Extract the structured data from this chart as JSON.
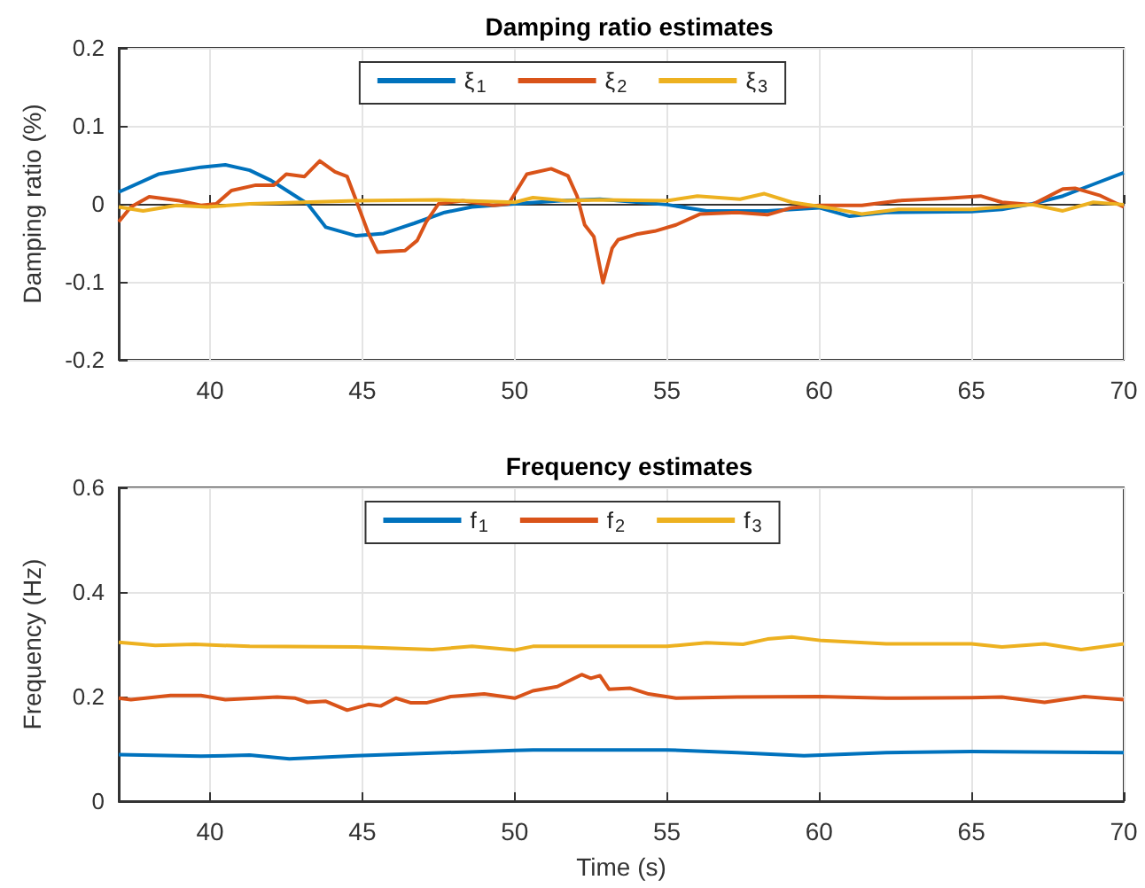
{
  "chart_data": [
    {
      "type": "line",
      "title": "Damping ratio estimates",
      "ylabel": "Damping ratio (%)",
      "xlim": [
        37,
        70
      ],
      "xticks": [
        40,
        45,
        50,
        55,
        60,
        65,
        70
      ],
      "ylim": [
        -0.2,
        0.2
      ],
      "yticks": [
        -0.2,
        -0.1,
        0,
        0.1,
        0.2
      ],
      "grid": true,
      "legend": "top",
      "line_style": "solid",
      "marker": "none",
      "series": [
        {
          "name": "ξ$_{1}$",
          "color": "#0072bd",
          "x": [
            37,
            38.3,
            39.7,
            40.5,
            41.3,
            42,
            42.6,
            43.2,
            43.8,
            44.8,
            45.7,
            46.7,
            47.7,
            48.6,
            50,
            51.5,
            52.8,
            55,
            56.3,
            58.3,
            60,
            61,
            62.2,
            65,
            66,
            67,
            68,
            69,
            70
          ],
          "values": [
            0.015,
            0.038,
            0.047,
            0.05,
            0.043,
            0.03,
            0.015,
            0,
            -0.03,
            -0.041,
            -0.038,
            -0.025,
            -0.011,
            -0.004,
            0,
            0.004,
            0.006,
            -0.001,
            -0.009,
            -0.009,
            -0.005,
            -0.016,
            -0.011,
            -0.01,
            -0.007,
            0,
            0.01,
            0.025,
            0.04
          ]
        },
        {
          "name": "ξ$_{2}$",
          "color": "#d95319",
          "x": [
            37,
            37.4,
            38,
            39,
            39.7,
            40.2,
            40.7,
            41.5,
            42.1,
            42.5,
            43.1,
            43.6,
            44.1,
            44.5,
            44.8,
            45.2,
            45.5,
            46.4,
            46.8,
            47.1,
            47.5,
            48.3,
            49.3,
            49.8,
            50.4,
            51.2,
            51.75,
            52.05,
            52.3,
            52.6,
            52.9,
            53.2,
            53.4,
            54,
            54.6,
            55.3,
            56.1,
            57.3,
            58.3,
            59.1,
            60,
            61.4,
            62.6,
            64.2,
            65.3,
            66,
            67,
            68,
            68.4,
            69.2,
            70
          ],
          "values": [
            -0.023,
            -0.004,
            0.009,
            0.004,
            -0.002,
            0,
            0.017,
            0.024,
            0.024,
            0.038,
            0.035,
            0.055,
            0.041,
            0.035,
            0.004,
            -0.038,
            -0.062,
            -0.06,
            -0.047,
            -0.023,
            0,
            0.004,
            -0.002,
            0,
            0.038,
            0.045,
            0.036,
            0.01,
            -0.027,
            -0.042,
            -0.101,
            -0.057,
            -0.046,
            -0.039,
            -0.035,
            -0.027,
            -0.013,
            -0.011,
            -0.014,
            -0.005,
            -0.002,
            -0.002,
            0.004,
            0.007,
            0.01,
            0.002,
            -0.001,
            0.019,
            0.02,
            0.011,
            -0.004
          ]
        },
        {
          "name": "ξ$_{3}$",
          "color": "#edb120",
          "x": [
            37,
            37.8,
            38.9,
            39.9,
            41.3,
            44.8,
            47.5,
            50,
            50.6,
            51.7,
            52.8,
            55,
            56,
            57.4,
            58.2,
            59.1,
            60.3,
            61.4,
            62.6,
            65,
            67,
            68,
            69,
            70
          ],
          "values": [
            -0.004,
            -0.009,
            -0.002,
            -0.004,
            0,
            0.004,
            0.005,
            0.002,
            0.008,
            0.004,
            0.005,
            0.004,
            0.01,
            0.006,
            0.013,
            0.002,
            -0.005,
            -0.013,
            -0.007,
            -0.007,
            -0.001,
            -0.009,
            0.002,
            -0.001
          ]
        }
      ]
    },
    {
      "type": "line",
      "title": "Frequency estimates",
      "xlabel": "Time (s)",
      "ylabel": "Frequency (Hz)",
      "xlim": [
        37,
        70
      ],
      "xticks": [
        40,
        45,
        50,
        55,
        60,
        65,
        70
      ],
      "ylim": [
        0,
        0.6
      ],
      "yticks": [
        0,
        0.2,
        0.4,
        0.6
      ],
      "grid": true,
      "legend": "top",
      "line_style": "solid",
      "marker": "none",
      "series": [
        {
          "name": "f$_{1}$",
          "color": "#0072bd",
          "x": [
            37,
            39.7,
            41.3,
            42.6,
            44.8,
            50,
            50.6,
            55,
            57.3,
            59.5,
            62.2,
            65,
            70
          ],
          "values": [
            0.089,
            0.086,
            0.088,
            0.081,
            0.087,
            0.097,
            0.098,
            0.098,
            0.093,
            0.087,
            0.093,
            0.095,
            0.093
          ]
        },
        {
          "name": "f$_{2}$",
          "color": "#d95319",
          "x": [
            37,
            37.4,
            38.7,
            39.7,
            40.5,
            42.2,
            42.8,
            43.2,
            43.8,
            44.5,
            45.2,
            45.6,
            46.1,
            46.6,
            47.1,
            47.9,
            49,
            50,
            50.6,
            51.4,
            52.2,
            52.5,
            52.8,
            53.1,
            53.8,
            54.4,
            55.3,
            57.3,
            60,
            62.2,
            65,
            66,
            67.4,
            68.7,
            70
          ],
          "values": [
            0.197,
            0.194,
            0.202,
            0.202,
            0.194,
            0.199,
            0.197,
            0.189,
            0.191,
            0.174,
            0.185,
            0.182,
            0.197,
            0.188,
            0.188,
            0.2,
            0.205,
            0.197,
            0.211,
            0.219,
            0.242,
            0.235,
            0.24,
            0.214,
            0.216,
            0.205,
            0.197,
            0.199,
            0.2,
            0.197,
            0.198,
            0.199,
            0.189,
            0.2,
            0.194
          ]
        },
        {
          "name": "f$_{3}$",
          "color": "#edb120",
          "x": [
            37,
            38.2,
            39.5,
            41.3,
            44.8,
            47.3,
            48.6,
            50,
            50.6,
            55,
            56.3,
            57.5,
            58.3,
            59.1,
            60.1,
            62.2,
            65,
            66,
            67.4,
            68.6,
            70
          ],
          "values": [
            0.304,
            0.298,
            0.3,
            0.296,
            0.295,
            0.29,
            0.296,
            0.289,
            0.296,
            0.296,
            0.303,
            0.3,
            0.31,
            0.314,
            0.307,
            0.301,
            0.301,
            0.295,
            0.301,
            0.29,
            0.301
          ]
        }
      ]
    }
  ]
}
